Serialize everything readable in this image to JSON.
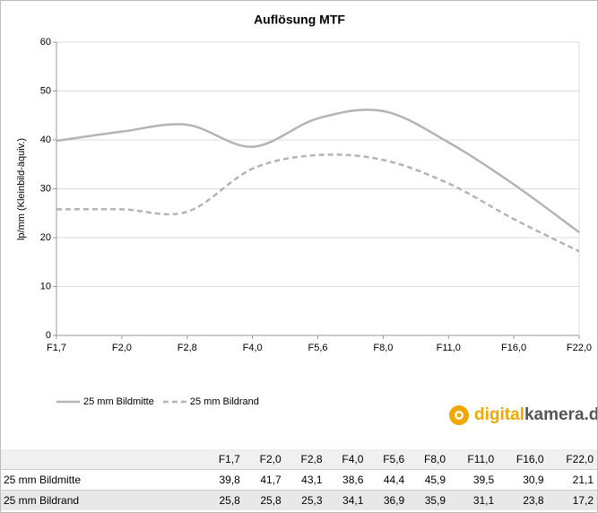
{
  "chart_data": {
    "type": "line",
    "title": "Auflösung MTF",
    "y_label": "lp/mm  (Kleinbild-äquiv.)",
    "categories": [
      "F1,7",
      "F2,0",
      "F2,8",
      "F4,0",
      "F5,6",
      "F8,0",
      "F11,0",
      "F16,0",
      "F22,0"
    ],
    "series": [
      {
        "name": "25 mm Bildmitte",
        "color": "#b4b4b4",
        "line_style": "solid",
        "values": [
          39.8,
          41.7,
          43.1,
          38.6,
          44.4,
          45.9,
          39.5,
          30.9,
          21.1
        ],
        "value_labels": [
          "39,8",
          "41,7",
          "43,1",
          "38,6",
          "44,4",
          "45,9",
          "39,5",
          "30,9",
          "21,1"
        ]
      },
      {
        "name": "25 mm Bildrand",
        "color": "#b4b4b4",
        "line_style": "dashed",
        "values": [
          25.8,
          25.8,
          25.3,
          34.1,
          36.9,
          35.9,
          31.1,
          23.8,
          17.2
        ],
        "value_labels": [
          "25,8",
          "25,8",
          "25,3",
          "34,1",
          "36,9",
          "35,9",
          "31,1",
          "23,8",
          "17,2"
        ]
      }
    ],
    "ylim": [
      0,
      60
    ],
    "yticks": [
      0,
      10,
      20,
      30,
      40,
      50,
      60
    ],
    "grid": true
  },
  "logo": [
    "digital",
    "kamera.de"
  ]
}
